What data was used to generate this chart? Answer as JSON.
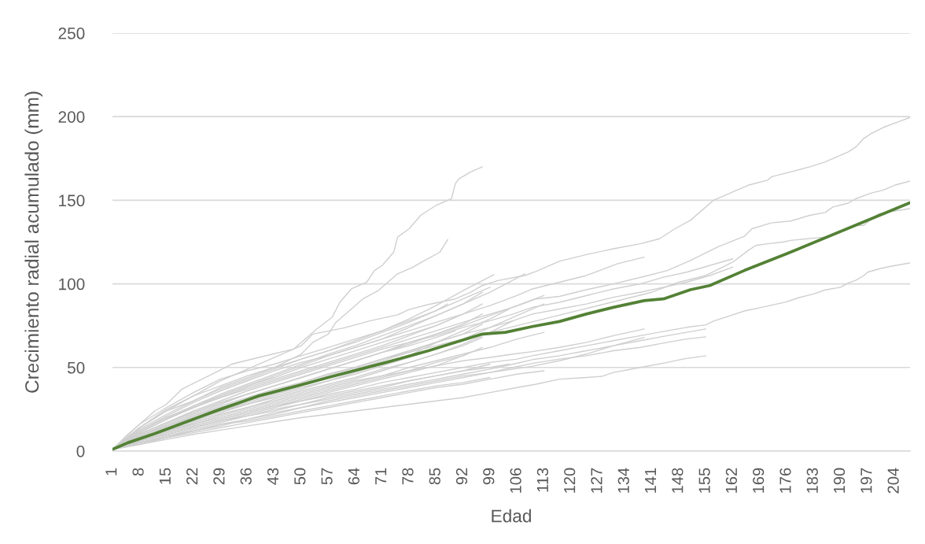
{
  "chart_data": {
    "type": "line",
    "xlabel": "Edad",
    "ylabel": "Crecimiento radial acumulado (mm)",
    "xlim": [
      1,
      208
    ],
    "xticks": [
      1,
      8,
      15,
      22,
      29,
      36,
      43,
      50,
      57,
      64,
      71,
      78,
      85,
      92,
      99,
      106,
      113,
      120,
      127,
      134,
      141,
      148,
      155,
      162,
      169,
      176,
      183,
      190,
      197,
      204
    ],
    "ylim": [
      0,
      250
    ],
    "yticks": [
      0,
      50,
      100,
      150,
      200,
      250
    ],
    "grid": "y",
    "series": [
      {
        "color": "#cfcfcf",
        "x": [
          1,
          5,
          12,
          15,
          19,
          26,
          32,
          39,
          48,
          54,
          58,
          60,
          63,
          67,
          69,
          71,
          74,
          75,
          78,
          81,
          85,
          89,
          90,
          91,
          94,
          97
        ],
        "values": [
          1,
          10,
          24,
          28,
          37,
          45,
          52,
          56,
          61,
          73,
          80,
          89,
          97,
          101,
          108,
          111,
          119,
          128,
          133,
          141,
          147,
          151,
          160,
          163,
          167,
          170
        ]
      },
      {
        "color": "#cfcfcf",
        "x": [
          1,
          8,
          15,
          22,
          29,
          36,
          43,
          50,
          53,
          57,
          59,
          63,
          66,
          70,
          72,
          75,
          79,
          82,
          86,
          88
        ],
        "values": [
          1,
          14,
          24,
          30,
          38,
          44,
          50,
          58,
          65,
          70,
          77,
          85,
          91,
          96,
          100,
          106,
          110,
          114,
          119,
          126.5
        ]
      },
      {
        "color": "#cfcfcf",
        "x": [
          1,
          8,
          15,
          22,
          29,
          36,
          43,
          50,
          53,
          61,
          68,
          75,
          78,
          83,
          90,
          94,
          97,
          101,
          108,
          111,
          117,
          124,
          131,
          138,
          143,
          147,
          151,
          157,
          166,
          171,
          172,
          182,
          186,
          188,
          192,
          194,
          196,
          198,
          201,
          205,
          208
        ],
        "values": [
          1,
          14,
          24,
          33,
          42,
          49,
          56,
          63,
          70,
          73.6,
          78,
          81.5,
          84.7,
          87.7,
          91,
          95,
          99,
          102,
          105,
          107.5,
          113.5,
          117.5,
          121,
          124,
          127,
          133,
          138,
          150,
          159,
          162,
          164,
          170,
          173,
          175,
          179,
          182,
          187,
          190,
          193.5,
          197,
          199.5
        ]
      },
      {
        "color": "#cfcfcf",
        "x": [
          1,
          8,
          15,
          22,
          29,
          36,
          43,
          50,
          57,
          64,
          71,
          78,
          85,
          92,
          99,
          105,
          111,
          117,
          124,
          131,
          140,
          145,
          151,
          158,
          165,
          167,
          172,
          177,
          182,
          186,
          188,
          192,
          194,
          198,
          201,
          204,
          208
        ],
        "values": [
          1,
          12,
          20,
          26,
          32,
          37,
          42,
          47,
          52,
          57,
          62,
          67,
          72,
          77,
          82,
          86,
          91,
          92.5,
          96.5,
          100,
          105,
          108,
          114,
          122,
          128.5,
          133,
          136.5,
          137.6,
          141,
          142.7,
          146,
          148.3,
          151,
          154.4,
          156,
          159,
          161.5
        ]
      },
      {
        "color": "#cfcfcf",
        "x": [
          1,
          8,
          15,
          22,
          29,
          36,
          43,
          50,
          57,
          64,
          71,
          78,
          85,
          92,
          99,
          106,
          113,
          120,
          127,
          134,
          141,
          148,
          155,
          162,
          166,
          168,
          171,
          175,
          177,
          186,
          194,
          196,
          198,
          200,
          204,
          208
        ],
        "values": [
          1,
          9,
          15,
          20,
          25,
          30,
          35,
          40,
          45,
          50,
          55,
          59,
          63,
          67,
          71,
          75,
          79,
          83,
          87,
          91,
          95,
          101,
          105,
          113,
          120,
          123,
          124,
          125,
          126,
          128,
          135,
          135,
          139,
          142,
          143.6,
          145
        ]
      },
      {
        "color": "#cfcfcf",
        "x": [
          1,
          8,
          15,
          22,
          29,
          36,
          43,
          50,
          57,
          64,
          71,
          78,
          85,
          92,
          99,
          106,
          110,
          117,
          124,
          132,
          139
        ],
        "values": [
          1,
          11,
          19,
          26,
          33,
          39,
          45,
          51,
          57,
          62,
          67,
          72,
          77,
          82,
          87,
          93,
          97,
          101,
          105,
          112,
          116
        ]
      },
      {
        "color": "#cfcfcf",
        "x": [
          1,
          8,
          15,
          22,
          29,
          36,
          43,
          50,
          57,
          64,
          71,
          78,
          85,
          92,
          99,
          105,
          110,
          117,
          124,
          131,
          138,
          144,
          150,
          156,
          162
        ],
        "values": [
          1,
          10,
          17,
          24,
          30,
          36,
          41,
          46,
          51,
          56,
          61,
          65,
          69,
          74,
          78,
          82,
          86,
          89,
          93,
          97,
          100,
          104,
          107,
          111,
          115
        ]
      },
      {
        "color": "#cfcfcf",
        "x": [
          1,
          8,
          15,
          22,
          29,
          36,
          43,
          50,
          57,
          64,
          71,
          78,
          85,
          92,
          99,
          105,
          110,
          117,
          124,
          131,
          138,
          144,
          150,
          156,
          162
        ],
        "values": [
          1,
          8,
          14,
          20,
          26,
          31,
          36,
          41,
          46,
          50,
          55,
          60,
          65,
          70,
          74,
          78,
          82,
          85,
          88,
          92,
          95,
          98,
          101,
          105,
          110
        ]
      },
      {
        "color": "#cfcfcf",
        "x": [
          1,
          8,
          15,
          22,
          29,
          36,
          43,
          50,
          57,
          64,
          71,
          78,
          85,
          92,
          99,
          106,
          110,
          117,
          124,
          131,
          138,
          145,
          150,
          155,
          157,
          160,
          165,
          170,
          176,
          179,
          183,
          186,
          190,
          192,
          194,
          196,
          197,
          200,
          203,
          208
        ],
        "values": [
          1,
          6,
          10,
          14,
          18,
          22,
          26,
          30,
          34,
          37,
          41,
          44,
          47,
          50,
          53,
          55,
          57,
          60,
          63,
          66,
          69,
          72,
          74,
          75.5,
          77.7,
          80,
          83.8,
          86.2,
          89.3,
          91.7,
          94,
          96.4,
          98,
          100.6,
          102.2,
          105,
          107,
          109,
          110.5,
          112.5
        ]
      },
      {
        "color": "#cfcfcf",
        "x": [
          1,
          8,
          15,
          22,
          29,
          36,
          43,
          50,
          57,
          64,
          71,
          78,
          85,
          92,
          99,
          105,
          110,
          117,
          124,
          131,
          139
        ],
        "values": [
          1,
          7,
          12,
          17,
          22,
          26,
          30,
          34,
          38,
          42,
          45,
          48,
          51,
          54,
          56,
          58,
          59.5,
          62,
          65,
          69,
          73
        ]
      },
      {
        "color": "#cfcfcf",
        "x": [
          1,
          8,
          15,
          22,
          29,
          36,
          43,
          50,
          57,
          64,
          71,
          78,
          85,
          92,
          99,
          105,
          110,
          117,
          124,
          131,
          138,
          145,
          150,
          155
        ],
        "values": [
          1,
          5,
          9,
          13,
          17,
          21,
          24,
          28,
          31,
          34,
          37,
          40,
          43,
          46,
          49,
          52,
          54.7,
          57,
          60,
          63,
          66,
          69,
          71,
          73
        ]
      },
      {
        "color": "#cfcfcf",
        "x": [
          1,
          8,
          15,
          22,
          29,
          36,
          43,
          50,
          57,
          64,
          71,
          78,
          85,
          92,
          99,
          105,
          110,
          117,
          124,
          131,
          138,
          145,
          150,
          155
        ],
        "values": [
          1,
          5,
          8,
          12,
          15,
          19,
          22,
          26,
          29,
          32,
          35,
          38,
          41,
          44,
          47,
          50,
          52.4,
          55,
          57,
          60,
          62,
          65,
          67,
          68.3
        ]
      },
      {
        "color": "#cfcfcf",
        "x": [
          1,
          8,
          15,
          22,
          29,
          36,
          43,
          50,
          57,
          64,
          71,
          78,
          85,
          92,
          99,
          105,
          110,
          117,
          124,
          131,
          139
        ],
        "values": [
          1,
          5,
          9,
          12,
          16,
          19,
          23,
          26,
          30,
          33,
          36,
          39,
          42,
          45,
          47,
          49,
          50.8,
          54,
          58,
          63,
          68
        ]
      },
      {
        "color": "#cfcfcf",
        "x": [
          1,
          8,
          15,
          22,
          29,
          36,
          43,
          50,
          57,
          64,
          71,
          78,
          85,
          92,
          99,
          106,
          111,
          117,
          124,
          128,
          131,
          138,
          145,
          149,
          155
        ],
        "values": [
          1,
          4,
          7,
          10,
          12.5,
          15,
          17.5,
          20,
          22,
          24,
          26,
          28,
          30,
          32,
          35,
          38,
          40,
          43,
          44,
          44.7,
          47,
          50,
          53,
          55,
          57
        ]
      },
      {
        "color": "#cfcfcf",
        "x": [
          1,
          8,
          15,
          22,
          29,
          36,
          43,
          50,
          57,
          64,
          71,
          78,
          85,
          92,
          99,
          106,
          113
        ],
        "values": [
          1,
          4,
          8,
          11,
          14,
          17,
          20,
          23,
          26,
          29,
          32,
          35,
          38,
          40,
          43,
          46,
          48
        ]
      },
      {
        "color": "#cfcfcf",
        "x": [
          1,
          8,
          15,
          22,
          29,
          36,
          43,
          50,
          57,
          64,
          71,
          78,
          85,
          92,
          99
        ],
        "values": [
          1,
          5,
          9,
          12,
          16,
          18,
          21,
          24,
          27,
          30,
          33,
          36,
          39,
          41,
          44
        ]
      },
      {
        "color": "#cfcfcf",
        "x": [
          1,
          8,
          15,
          22,
          29,
          36,
          43,
          50,
          57,
          64,
          71,
          78,
          85,
          92,
          99,
          104
        ],
        "values": [
          1,
          6,
          11,
          15,
          19,
          23,
          27,
          30,
          33,
          36,
          39,
          42,
          45,
          48,
          50,
          52
        ]
      },
      {
        "color": "#cfcfcf",
        "x": [
          1,
          8,
          15,
          22,
          29,
          36,
          43,
          50,
          57,
          64,
          71,
          78,
          85,
          92,
          100
        ],
        "values": [
          1,
          13,
          22,
          30,
          37,
          43,
          49,
          55,
          60,
          66,
          72,
          79,
          87,
          96,
          105.5
        ]
      },
      {
        "color": "#cfcfcf",
        "x": [
          1,
          8,
          15,
          22,
          29,
          36,
          43,
          50,
          57,
          64,
          71,
          78,
          85,
          92,
          99,
          104,
          108
        ],
        "values": [
          1,
          11,
          19,
          27,
          34,
          40,
          46,
          52,
          58,
          63,
          69,
          75,
          81,
          88,
          95,
          101,
          106
        ]
      },
      {
        "color": "#cfcfcf",
        "x": [
          1,
          8,
          15,
          22,
          29,
          36,
          43,
          50,
          57,
          64,
          71,
          78,
          85,
          92,
          99,
          106,
          113
        ],
        "values": [
          1,
          10,
          17,
          23,
          29,
          34,
          39,
          44,
          49,
          54,
          59,
          64,
          70,
          75,
          81,
          87,
          93
        ]
      },
      {
        "color": "#cfcfcf",
        "x": [
          1,
          8,
          15,
          22,
          29,
          36,
          43,
          50,
          57,
          64,
          71,
          78,
          85,
          92,
          97
        ],
        "values": [
          1,
          12,
          21,
          29,
          36,
          42,
          48,
          53,
          57,
          62,
          67,
          74,
          81,
          88,
          95
        ]
      },
      {
        "color": "#cfcfcf",
        "x": [
          1,
          8,
          15,
          22,
          29,
          36,
          43,
          50,
          57,
          64,
          71,
          78,
          85,
          92,
          97
        ],
        "values": [
          1,
          11,
          19,
          26,
          32,
          38,
          43,
          48,
          53,
          58,
          63,
          69,
          75,
          82,
          88
        ]
      },
      {
        "color": "#cfcfcf",
        "x": [
          1,
          8,
          15,
          22,
          29,
          36,
          43,
          50,
          57,
          64,
          71,
          78,
          85,
          92,
          97
        ],
        "values": [
          1,
          9,
          16,
          22,
          28,
          34,
          39,
          44,
          49,
          54,
          59,
          65,
          70,
          76,
          82
        ]
      },
      {
        "color": "#cfcfcf",
        "x": [
          1,
          8,
          15,
          22,
          29,
          36,
          43,
          50,
          57,
          64,
          71,
          78,
          85,
          92,
          97
        ],
        "values": [
          1,
          9,
          15,
          21,
          27,
          32,
          37,
          41,
          46,
          50,
          55,
          60,
          65,
          70,
          76
        ]
      },
      {
        "color": "#cfcfcf",
        "x": [
          1,
          8,
          15,
          22,
          29,
          36,
          43,
          50,
          57,
          64,
          71,
          78,
          85,
          92,
          97
        ],
        "values": [
          1,
          8,
          13,
          18,
          23,
          28,
          32,
          36,
          40,
          44,
          49,
          53,
          58,
          63,
          68
        ]
      },
      {
        "color": "#cfcfcf",
        "x": [
          1,
          8,
          15,
          22,
          29,
          36,
          43,
          50,
          57,
          64,
          71,
          78,
          85,
          92,
          97
        ],
        "values": [
          1,
          7,
          12,
          16,
          20,
          24,
          28,
          32,
          36,
          40,
          44,
          48,
          53,
          57,
          62
        ]
      },
      {
        "color": "#cfcfcf",
        "x": [
          1,
          8,
          15,
          22,
          29,
          36,
          43,
          50,
          57,
          64,
          71,
          78,
          85,
          90
        ],
        "values": [
          1,
          12,
          20,
          27,
          33,
          39,
          44,
          50,
          55,
          60,
          65,
          70,
          75,
          80
        ]
      },
      {
        "color": "#cfcfcf",
        "x": [
          1,
          8,
          15,
          22,
          29,
          36,
          43,
          50,
          57,
          64,
          71,
          78,
          85,
          90
        ],
        "values": [
          1,
          10,
          17,
          23,
          29,
          34,
          39,
          44,
          49,
          54,
          59,
          63,
          68,
          72
        ]
      },
      {
        "color": "#cfcfcf",
        "x": [
          1,
          8,
          15,
          22,
          29,
          36,
          43,
          50,
          57,
          64,
          71,
          78,
          86
        ],
        "values": [
          1,
          8,
          14,
          19,
          24,
          29,
          34,
          38,
          42,
          47,
          52,
          57,
          66
        ]
      },
      {
        "color": "#cfcfcf",
        "x": [
          1,
          8,
          15,
          22,
          29,
          36,
          43,
          50,
          57,
          64,
          71,
          78,
          85,
          92,
          99,
          104
        ],
        "values": [
          1,
          9,
          15,
          21,
          26,
          31,
          35,
          40,
          44,
          49,
          54,
          59,
          65,
          72,
          79,
          85
        ]
      },
      {
        "color": "#cfcfcf",
        "x": [
          1,
          8,
          15,
          22,
          29,
          36,
          43,
          50,
          57,
          64,
          71,
          78,
          85,
          92,
          99,
          106,
          113
        ],
        "values": [
          1,
          8,
          14,
          19,
          24,
          28,
          33,
          37,
          42,
          46,
          51,
          56,
          61,
          67,
          74,
          81,
          88
        ]
      },
      {
        "color": "#cfcfcf",
        "x": [
          1,
          8,
          15,
          22,
          29,
          36,
          43,
          50,
          57,
          64,
          71,
          78,
          85,
          92,
          99,
          105
        ],
        "values": [
          1,
          7,
          12,
          17,
          22,
          26,
          31,
          35,
          39,
          43,
          48,
          53,
          58,
          64,
          71,
          78
        ]
      },
      {
        "color": "#cfcfcf",
        "x": [
          1,
          8,
          15,
          22,
          29,
          36,
          43,
          50,
          57,
          64,
          71,
          78,
          85,
          93
        ],
        "values": [
          1,
          6,
          11,
          15,
          19,
          23,
          27,
          31,
          35,
          39,
          43,
          47,
          51,
          58
        ]
      },
      {
        "color": "#cfcfcf",
        "x": [
          1,
          8,
          15,
          22,
          29,
          36,
          43,
          50,
          57,
          64,
          71,
          78,
          85,
          92,
          99,
          106,
          113
        ],
        "values": [
          1,
          7,
          12,
          16,
          21,
          25,
          29,
          33,
          37,
          41,
          45,
          50,
          54,
          58,
          62,
          67,
          71
        ]
      },
      {
        "color": "#cfcfcf",
        "x": [
          1,
          8,
          15,
          22,
          29,
          36,
          43,
          50,
          57,
          64,
          71,
          78,
          85,
          92,
          99
        ],
        "values": [
          1,
          6,
          10,
          14,
          18,
          21,
          25,
          28,
          32,
          35,
          38,
          42,
          45,
          48,
          52
        ]
      },
      {
        "color": "#cfcfcf",
        "x": [
          1,
          8,
          15,
          22,
          29,
          36,
          43,
          50,
          57,
          64,
          71,
          78,
          85,
          88
        ],
        "values": [
          1,
          16,
          26,
          35,
          43,
          48,
          52,
          57,
          62,
          67,
          72,
          78,
          84,
          88
        ]
      },
      {
        "color": "#cfcfcf",
        "x": [
          1,
          8,
          15,
          22,
          29,
          36,
          43,
          50,
          57,
          64,
          71,
          78,
          85,
          92,
          99
        ],
        "values": [
          1,
          14,
          25,
          33,
          39,
          45,
          50,
          55,
          60,
          65,
          71,
          77,
          84,
          91,
          98
        ]
      },
      {
        "color": "#538135",
        "x": [
          1,
          5,
          12,
          19,
          29,
          39,
          49,
          57,
          72,
          83,
          97,
          103,
          110,
          117,
          124,
          131,
          139,
          144,
          151,
          156,
          165,
          176,
          208
        ],
        "values": [
          1,
          5,
          10.5,
          16.5,
          25,
          33,
          39,
          44,
          53,
          60,
          70,
          71,
          74.5,
          77.5,
          82,
          86,
          90,
          91,
          96.5,
          99,
          108,
          118,
          148.5
        ]
      }
    ]
  }
}
